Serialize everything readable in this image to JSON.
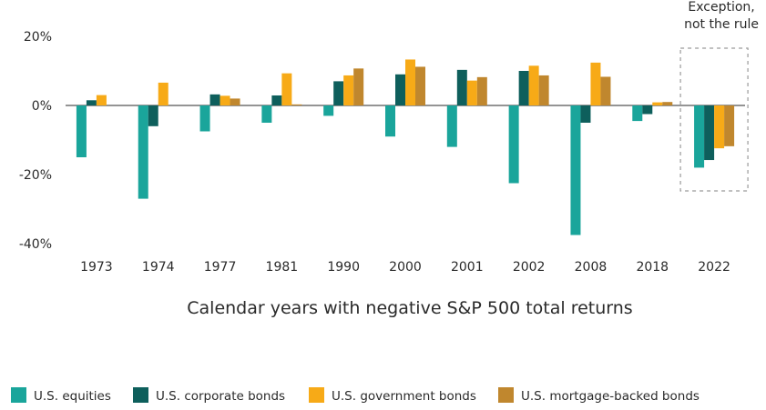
{
  "chart_data": {
    "type": "bar",
    "title": "",
    "xlabel": "Calendar years with negative S&P 500 total returns",
    "ylabel": "",
    "ylim": [
      -40,
      20
    ],
    "yticks": [
      20,
      0,
      -20,
      -40
    ],
    "ytick_labels": [
      "20%",
      "0%",
      "-20%",
      "-40%"
    ],
    "categories": [
      "1973",
      "1974",
      "1977",
      "1981",
      "1990",
      "2000",
      "2001",
      "2002",
      "2008",
      "2018",
      "2022"
    ],
    "series": [
      {
        "name": "U.S. equities",
        "color": "#1aa59b",
        "values": [
          -15,
          -27,
          -7.5,
          -5,
          -3,
          -9,
          -12,
          -22.5,
          -37.5,
          -4.5,
          -18
        ]
      },
      {
        "name": "U.S. corporate bonds",
        "color": "#0e5f5c",
        "values": [
          1.5,
          -6,
          3.2,
          2.9,
          7,
          9,
          10.3,
          10,
          -5,
          -2.5,
          -15.8
        ]
      },
      {
        "name": "U.S. government bonds",
        "color": "#f7aa17",
        "values": [
          3,
          6.6,
          2.8,
          9.3,
          8.7,
          13.3,
          7.2,
          11.5,
          12.4,
          0.9,
          -12.4
        ]
      },
      {
        "name": "U.S. mortgage-backed bonds",
        "color": "#c0872e",
        "values": [
          0,
          0,
          2,
          0.3,
          10.7,
          11.2,
          8.2,
          8.7,
          8.3,
          1,
          -11.8
        ]
      }
    ],
    "annotation": {
      "line1": "Exception,",
      "line2": "not the rule",
      "target_category": "2022"
    },
    "grid": false,
    "legend_position": "bottom"
  }
}
